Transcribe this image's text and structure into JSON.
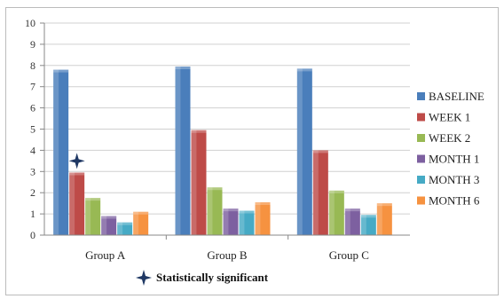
{
  "chart_data": {
    "type": "bar",
    "categories": [
      "Group A",
      "Group B",
      "Group C"
    ],
    "series": [
      {
        "name": "BASELINE",
        "values": [
          7.8,
          7.95,
          7.85
        ],
        "color": "#4a7ebb"
      },
      {
        "name": "WEEK 1",
        "values": [
          2.95,
          4.95,
          4.0
        ],
        "color": "#be4b48"
      },
      {
        "name": "WEEK 2",
        "values": [
          1.75,
          2.25,
          2.1
        ],
        "color": "#98b954"
      },
      {
        "name": "MONTH 1",
        "values": [
          0.9,
          1.25,
          1.25
        ],
        "color": "#7d60a0"
      },
      {
        "name": "MONTH 3",
        "values": [
          0.6,
          1.15,
          0.95
        ],
        "color": "#46aac5"
      },
      {
        "name": "MONTH 6",
        "values": [
          1.1,
          1.55,
          1.5
        ],
        "color": "#f69240"
      }
    ],
    "title": "",
    "xlabel": "",
    "ylabel": "",
    "ylim": [
      0,
      10
    ],
    "yticks": [
      "0",
      "1",
      "2",
      "3",
      "4",
      "5",
      "6",
      "7",
      "8",
      "9",
      "10"
    ],
    "grid": true,
    "legend_position": "right",
    "annotation": {
      "marker": "four-point-star",
      "category": "Group A",
      "series": "WEEK 1",
      "y": 3.5,
      "legend_text": "Statistically significant",
      "color": "#1f3864"
    }
  }
}
